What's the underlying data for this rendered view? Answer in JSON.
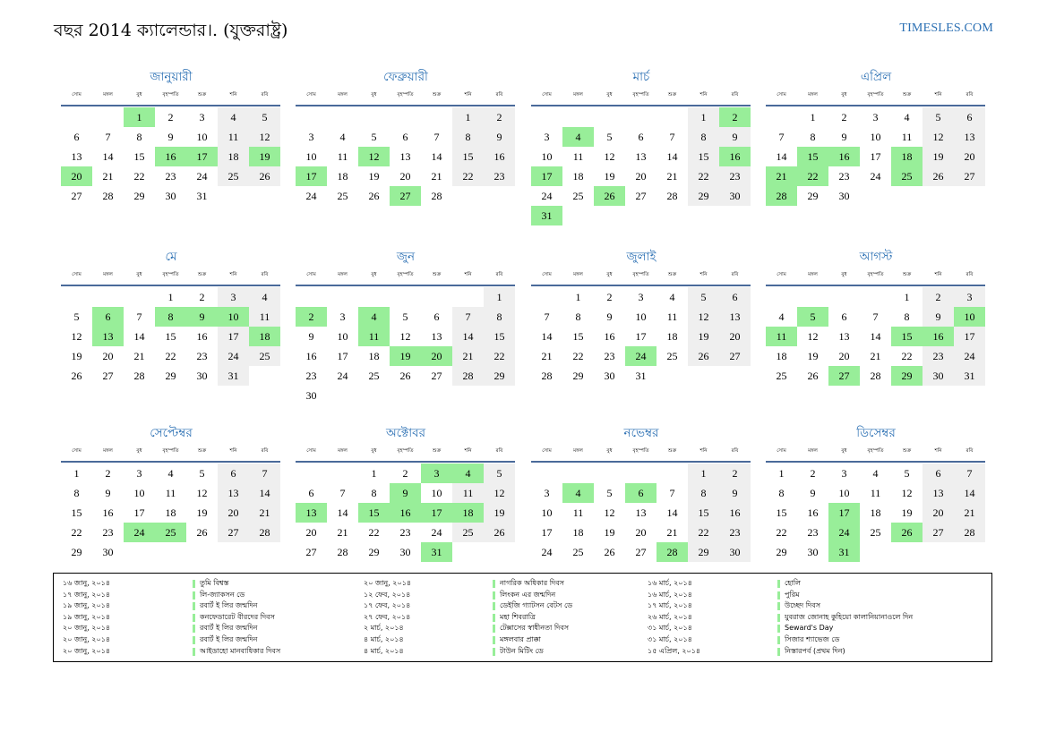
{
  "title": "বছর 2014 ক্যালেন্ডার।. (যুক্তরাষ্ট্র)",
  "brand": "TIMESLES.COM",
  "colors": {
    "accent": "#2a6fb3",
    "holiday": "#98ee99",
    "weekend": "#efefef",
    "rule": "#4a6a9a"
  },
  "weekdays": [
    "সোম",
    "মঙ্গল",
    "বুধ",
    "বৃহস্পতি",
    "শুক্র",
    "শনি",
    "রবি"
  ],
  "months": [
    {
      "name": "জানুয়ারী",
      "startCol": 2,
      "days": 31,
      "highlights": [
        1,
        16,
        17,
        19,
        20
      ]
    },
    {
      "name": "ফেব্রুয়ারী",
      "startCol": 5,
      "days": 28,
      "highlights": [
        12,
        17,
        27
      ]
    },
    {
      "name": "মার্চ",
      "startCol": 5,
      "days": 31,
      "highlights": [
        2,
        4,
        16,
        17,
        26,
        31
      ]
    },
    {
      "name": "এপ্রিল",
      "startCol": 1,
      "days": 30,
      "highlights": [
        15,
        16,
        18,
        21,
        22,
        25,
        28
      ]
    },
    {
      "name": "মে",
      "startCol": 3,
      "days": 31,
      "highlights": [
        6,
        8,
        9,
        10,
        13,
        18
      ]
    },
    {
      "name": "জুন",
      "startCol": 6,
      "days": 30,
      "highlights": [
        2,
        4,
        11,
        19,
        20
      ]
    },
    {
      "name": "জুলাই",
      "startCol": 1,
      "days": 31,
      "highlights": [
        24
      ]
    },
    {
      "name": "আগস্ট",
      "startCol": 4,
      "days": 31,
      "highlights": [
        5,
        10,
        11,
        15,
        16,
        27,
        29
      ]
    },
    {
      "name": "সেপ্টেম্বর",
      "startCol": 0,
      "days": 30,
      "highlights": [
        24,
        25
      ]
    },
    {
      "name": "অক্টোবর",
      "startCol": 2,
      "days": 31,
      "highlights": [
        3,
        4,
        9,
        13,
        15,
        16,
        17,
        18,
        31
      ]
    },
    {
      "name": "নভেম্বর",
      "startCol": 5,
      "days": 30,
      "highlights": [
        4,
        6,
        28
      ]
    },
    {
      "name": "ডিসেম্বর",
      "startCol": 0,
      "days": 31,
      "highlights": [
        17,
        24,
        26,
        31
      ]
    }
  ],
  "holidays": [
    [
      {
        "date": "১৬ জানু, ২০১৪",
        "name": "তুমি বিশ্বস্ত"
      },
      {
        "date": "১৭ জানু, ২০১৪",
        "name": "লি-জ্যাকসন ডে"
      },
      {
        "date": "১৯ জানু, ২০১৪",
        "name": "রবার্ট ই লির জন্মদিন"
      },
      {
        "date": "১৯ জানু, ২০১৪",
        "name": "কনফেডারেট বীরদের দিবস"
      },
      {
        "date": "২০ জানু, ২০১৪",
        "name": "রবার্ট ই লির জন্মদিন"
      },
      {
        "date": "২০ জানু, ২০১৪",
        "name": "রবার্ট ই লির জন্মদিন"
      },
      {
        "date": "২০ জানু, ২০১৪",
        "name": "আইডাহো মানবাধিকার দিবস"
      }
    ],
    [
      {
        "date": "২০ জানু, ২০১৪",
        "name": "নাগরিক অধিকার দিবস"
      },
      {
        "date": "১২ ফেব, ২০১৪",
        "name": "লিংকন এর জন্মদিন"
      },
      {
        "date": "১৭ ফেব, ২০১৪",
        "name": "ডেইজি গ্যাটসন বেটস ডে"
      },
      {
        "date": "২৭ ফেব, ২০১৪",
        "name": "মহা শিবরাত্রি"
      },
      {
        "date": "২ মার্চ, ২০১৪",
        "name": "টেক্সাসের স্বাধীনতা দিবস"
      },
      {
        "date": "৪ মার্চ, ২০১৪",
        "name": "মঙ্গলবার প্রাক্কা"
      },
      {
        "date": "৪ মার্চ, ২০১৪",
        "name": "টাউন মিটিং ডে"
      }
    ],
    [
      {
        "date": "১৬ মার্চ, ২০১৪",
        "name": "হোলি"
      },
      {
        "date": "১৬ মার্চ, ২০১৪",
        "name": "পুরিম"
      },
      {
        "date": "১৭ মার্চ, ২০১৪",
        "name": "উচ্ছেদ দিবস"
      },
      {
        "date": "২৬ মার্চ, ২০১৪",
        "name": "যুবরাজ জোনাহ কুহিয়ো কালানিয়ানাওলে দিন"
      },
      {
        "date": "৩১ মার্চ, ২০১৪",
        "name": "Seward's Day"
      },
      {
        "date": "৩১ মার্চ, ২০১৪",
        "name": "সিজার শ্যাভেজ ডে"
      },
      {
        "date": "১৫ এপ্রিল, ২০১৪",
        "name": "নিস্তারপর্ব (প্রথম দিন)"
      }
    ]
  ]
}
